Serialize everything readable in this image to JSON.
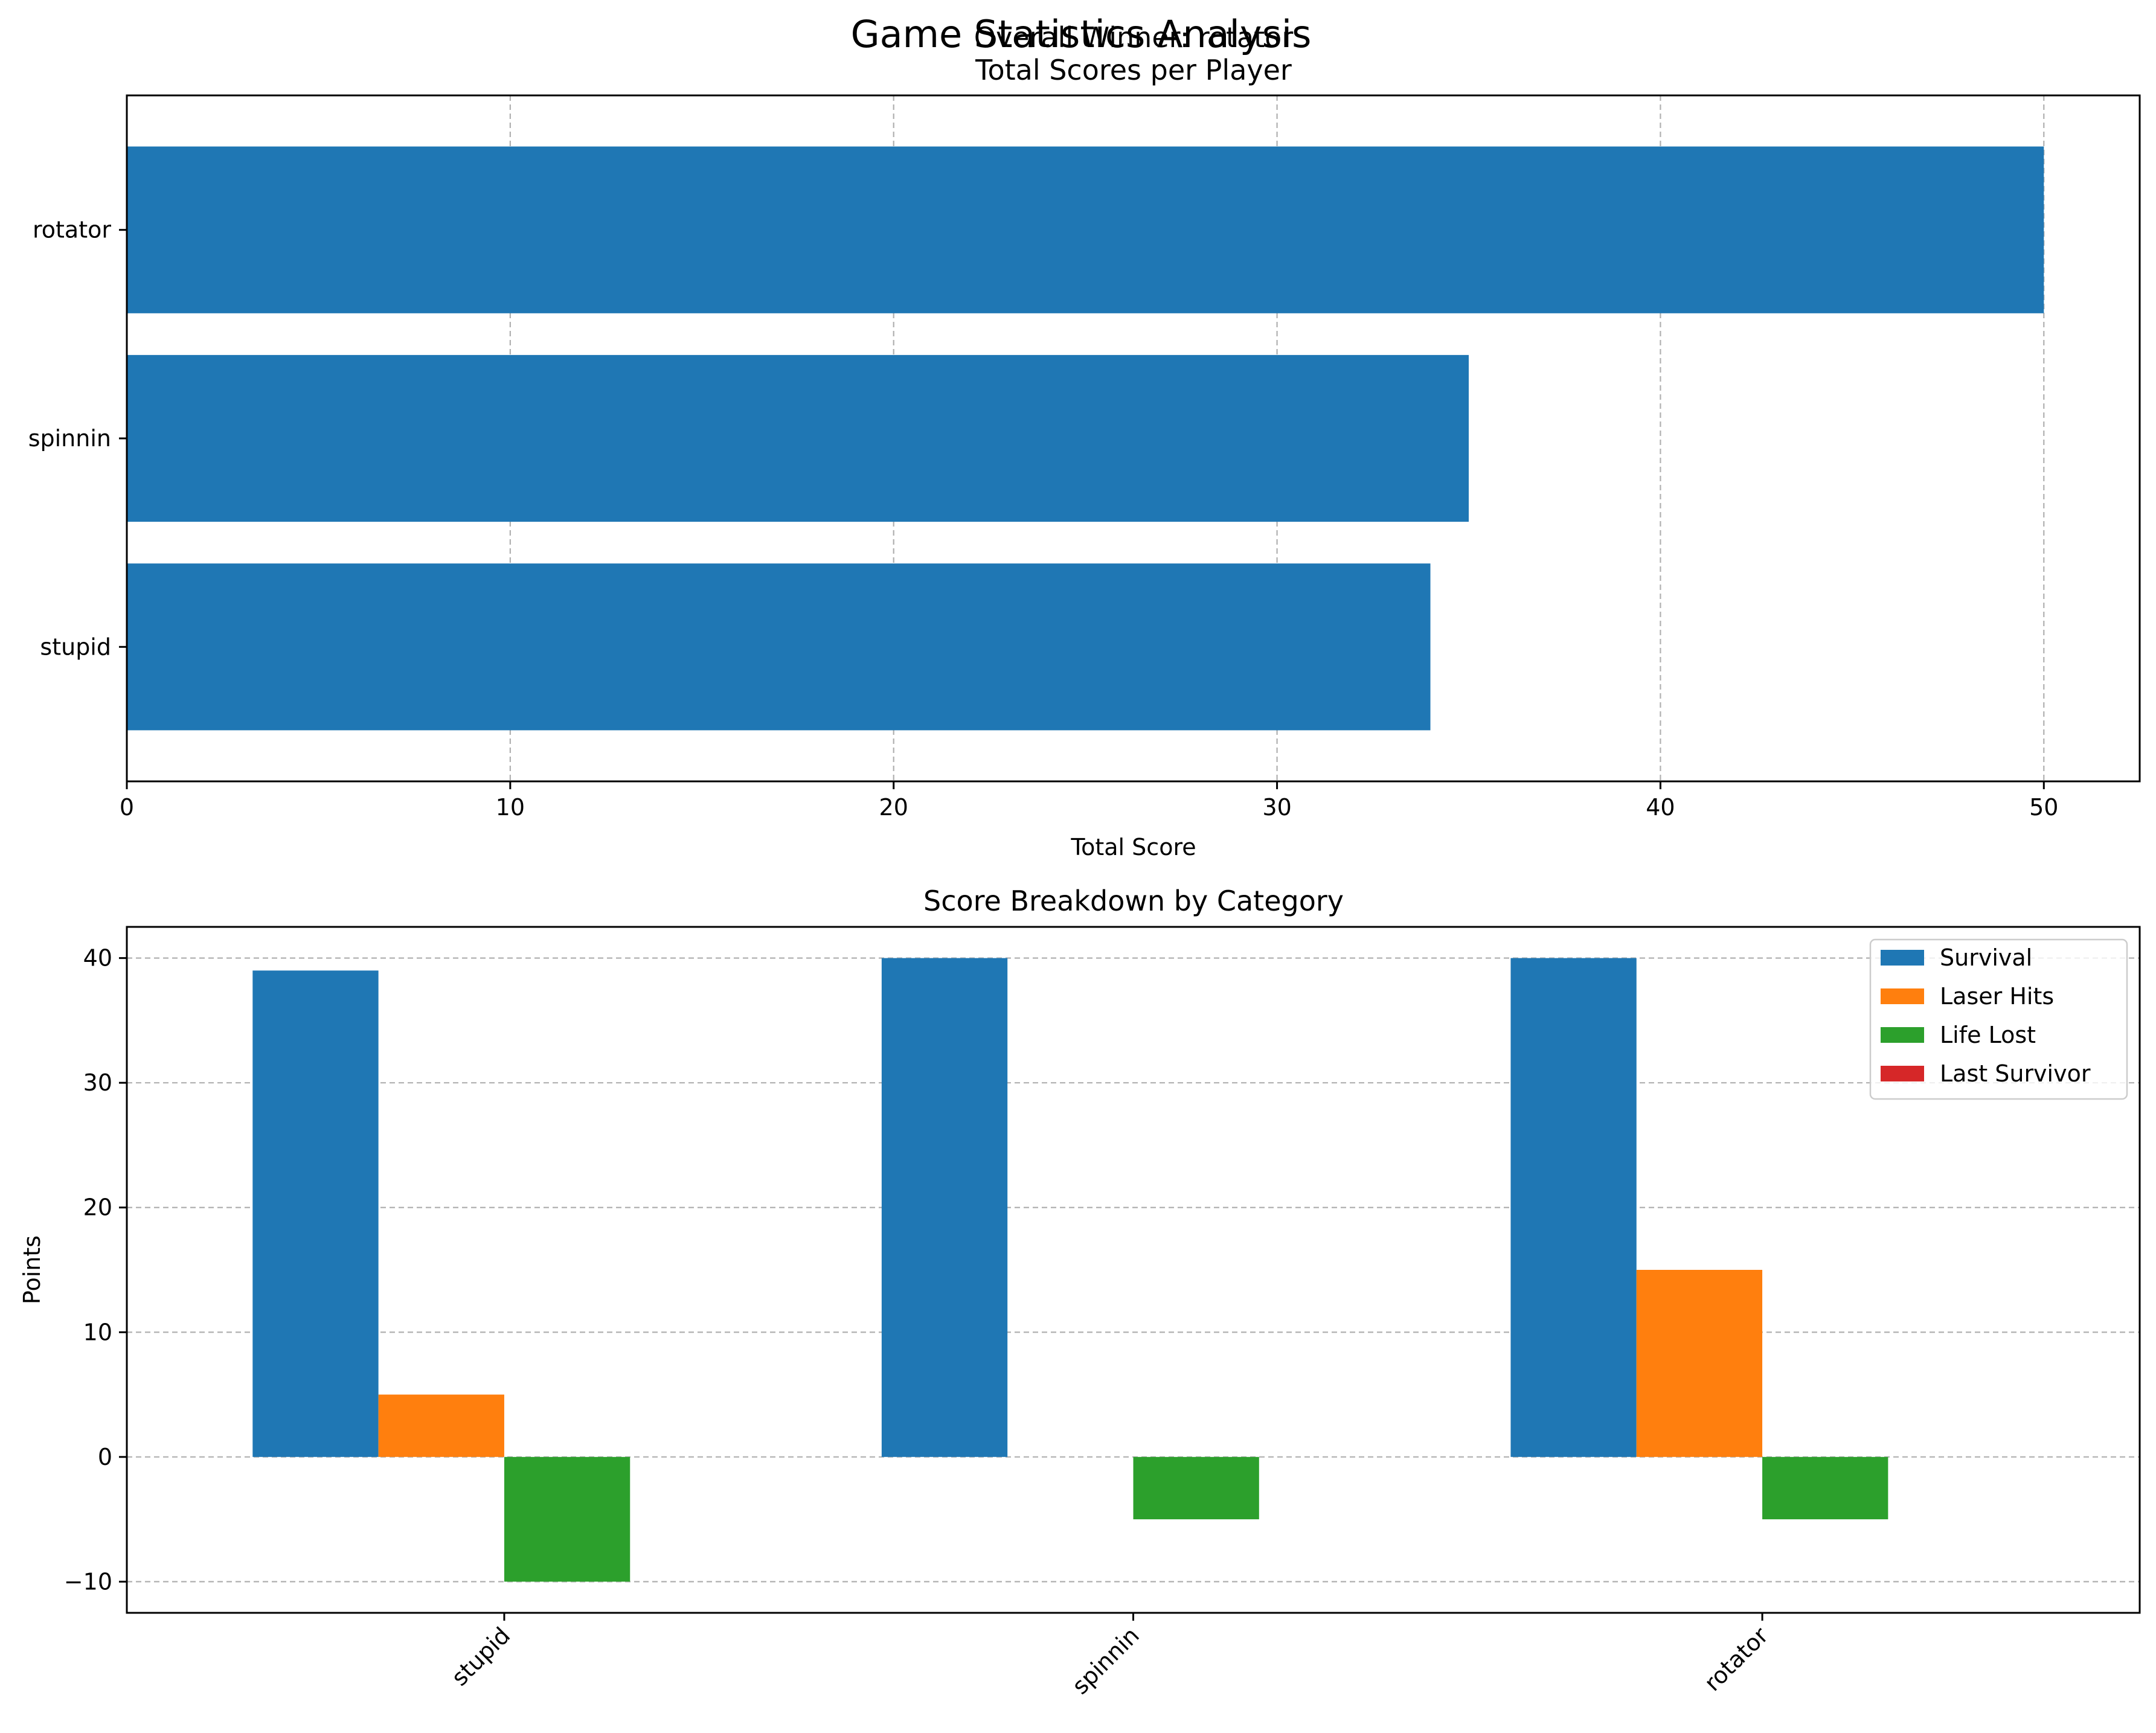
{
  "figure": {
    "suptitle": "Game Statistics Analysis"
  },
  "chart_data": [
    {
      "type": "bar",
      "orientation": "horizontal",
      "title_line1": "Overall Winner: rotator",
      "title_line2": "Total Scores per Player",
      "categories": [
        "stupid",
        "spinnin",
        "rotator"
      ],
      "values": [
        34,
        35,
        50
      ],
      "xlabel": "Total Score",
      "ylabel": "",
      "xlim": [
        0,
        52.5
      ],
      "xticks": [
        0,
        10,
        20,
        30,
        40,
        50
      ],
      "grid": true,
      "colors": {
        "bar": "#1f77b4"
      }
    },
    {
      "type": "bar",
      "orientation": "vertical",
      "grouped": true,
      "title": "Score Breakdown by Category",
      "categories": [
        "stupid",
        "spinnin",
        "rotator"
      ],
      "series": [
        {
          "name": "Survival",
          "values": [
            39,
            40,
            40
          ],
          "color": "#1f77b4"
        },
        {
          "name": "Laser Hits",
          "values": [
            5,
            0,
            15
          ],
          "color": "#ff7f0e"
        },
        {
          "name": "Life Lost",
          "values": [
            -10,
            -5,
            -5
          ],
          "color": "#2ca02c"
        },
        {
          "name": "Last Survivor",
          "values": [
            0,
            0,
            0
          ],
          "color": "#d62728"
        }
      ],
      "xlabel": "",
      "ylabel": "Points",
      "ylim": [
        -12.5,
        42.5
      ],
      "yticks": [
        -10,
        0,
        10,
        20,
        30,
        40
      ],
      "grid": true,
      "legend": "top-right",
      "xtick_rotation": 45
    }
  ]
}
